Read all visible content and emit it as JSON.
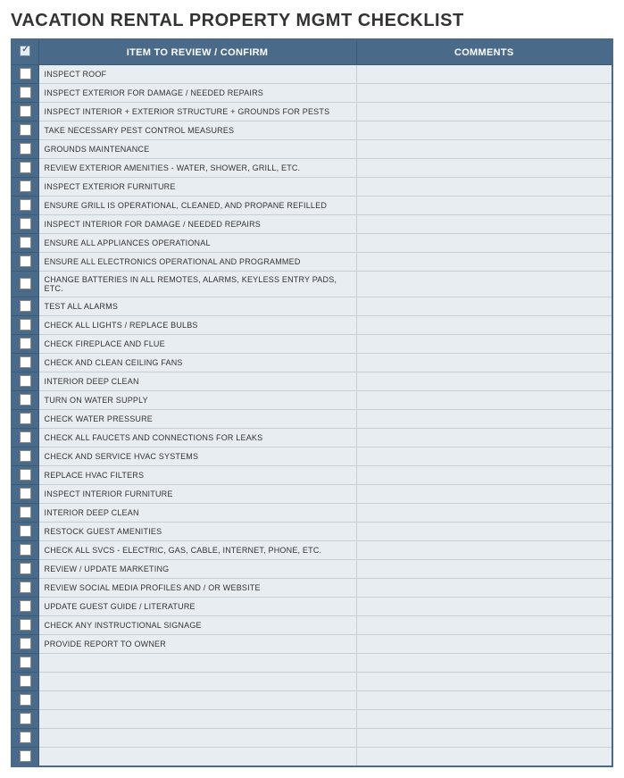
{
  "title": "VACATION RENTAL PROPERTY MGMT CHECKLIST",
  "headers": {
    "item": "ITEM TO REVIEW / CONFIRM",
    "comments": "COMMENTS"
  },
  "colors": {
    "header_bg": "#4a6a8a",
    "header_text": "#ffffff",
    "row_bg": "#e8edf2",
    "border": "#c5cfd8",
    "checkbox_col_bg": "#4a6a8a"
  },
  "rows": [
    {
      "item": "INSPECT ROOF",
      "comment": ""
    },
    {
      "item": "INSPECT EXTERIOR FOR DAMAGE / NEEDED REPAIRS",
      "comment": ""
    },
    {
      "item": "INSPECT INTERIOR + EXTERIOR STRUCTURE + GROUNDS FOR PESTS",
      "comment": ""
    },
    {
      "item": "TAKE NECESSARY PEST CONTROL MEASURES",
      "comment": ""
    },
    {
      "item": "GROUNDS MAINTENANCE",
      "comment": ""
    },
    {
      "item": "REVIEW EXTERIOR AMENITIES - WATER, SHOWER, GRILL, ETC.",
      "comment": ""
    },
    {
      "item": "INSPECT EXTERIOR FURNITURE",
      "comment": ""
    },
    {
      "item": "ENSURE GRILL IS OPERATIONAL, CLEANED, AND PROPANE REFILLED",
      "comment": ""
    },
    {
      "item": "INSPECT INTERIOR FOR DAMAGE / NEEDED REPAIRS",
      "comment": ""
    },
    {
      "item": "ENSURE ALL APPLIANCES OPERATIONAL",
      "comment": ""
    },
    {
      "item": "ENSURE ALL ELECTRONICS OPERATIONAL AND PROGRAMMED",
      "comment": ""
    },
    {
      "item": "CHANGE BATTERIES IN ALL REMOTES, ALARMS, KEYLESS ENTRY PADS, ETC.",
      "comment": ""
    },
    {
      "item": "TEST ALL ALARMS",
      "comment": ""
    },
    {
      "item": "CHECK ALL LIGHTS / REPLACE BULBS",
      "comment": ""
    },
    {
      "item": "CHECK FIREPLACE AND FLUE",
      "comment": ""
    },
    {
      "item": "CHECK AND CLEAN CEILING FANS",
      "comment": ""
    },
    {
      "item": "INTERIOR DEEP CLEAN",
      "comment": ""
    },
    {
      "item": "TURN ON WATER SUPPLY",
      "comment": ""
    },
    {
      "item": "CHECK WATER PRESSURE",
      "comment": ""
    },
    {
      "item": "CHECK ALL FAUCETS AND CONNECTIONS FOR LEAKS",
      "comment": ""
    },
    {
      "item": "CHECK AND SERVICE HVAC SYSTEMS",
      "comment": ""
    },
    {
      "item": "REPLACE HVAC FILTERS",
      "comment": ""
    },
    {
      "item": "INSPECT INTERIOR FURNITURE",
      "comment": ""
    },
    {
      "item": "INTERIOR DEEP CLEAN",
      "comment": ""
    },
    {
      "item": "RESTOCK GUEST AMENITIES",
      "comment": ""
    },
    {
      "item": "CHECK ALL SVCS - ELECTRIC, GAS, CABLE, INTERNET, PHONE, ETC.",
      "comment": ""
    },
    {
      "item": "REVIEW / UPDATE MARKETING",
      "comment": ""
    },
    {
      "item": "REVIEW SOCIAL MEDIA PROFILES AND / OR WEBSITE",
      "comment": ""
    },
    {
      "item": "UPDATE GUEST GUIDE / LITERATURE",
      "comment": ""
    },
    {
      "item": "CHECK ANY INSTRUCTIONAL SIGNAGE",
      "comment": ""
    },
    {
      "item": "PROVIDE REPORT TO OWNER",
      "comment": ""
    },
    {
      "item": "",
      "comment": ""
    },
    {
      "item": "",
      "comment": ""
    },
    {
      "item": "",
      "comment": ""
    },
    {
      "item": "",
      "comment": ""
    },
    {
      "item": "",
      "comment": ""
    },
    {
      "item": "",
      "comment": ""
    }
  ]
}
